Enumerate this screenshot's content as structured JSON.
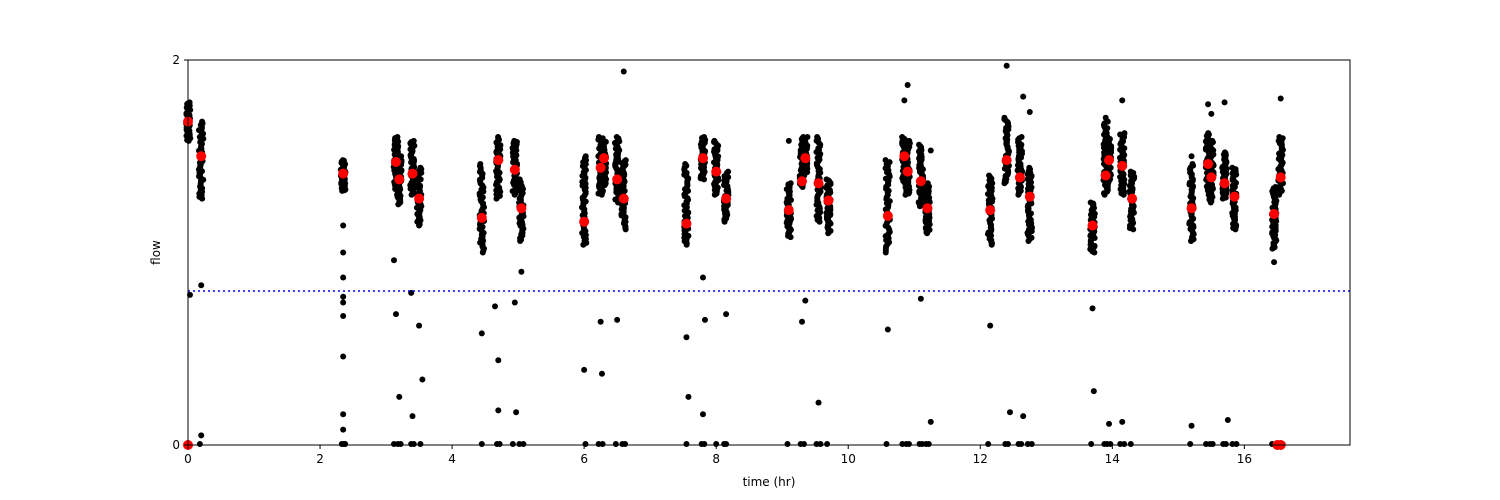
{
  "chart_data": {
    "type": "scatter",
    "title": "",
    "xlabel": "time (hr)",
    "ylabel": "flow",
    "xlim": [
      0,
      17.6
    ],
    "ylim": [
      0,
      2
    ],
    "x_ticks": [
      0,
      2,
      4,
      6,
      8,
      10,
      12,
      14,
      16
    ],
    "y_ticks": [
      0,
      2
    ],
    "grid": false,
    "legend": "none",
    "colors": {
      "raw": "#000000",
      "mean": "#ff0000",
      "threshold": "#0000ff"
    },
    "threshold": {
      "y": 0.8,
      "style": "dotted"
    },
    "clusters": [
      {
        "x": 0.0,
        "ymin": 1.58,
        "ymax": 1.78,
        "mean": 1.68
      },
      {
        "x": 0.2,
        "ymin": 1.28,
        "ymax": 1.68,
        "mean": 1.5
      },
      {
        "x": 2.35,
        "ymin": 1.32,
        "ymax": 1.48,
        "mean": 1.41
      },
      {
        "x": 3.15,
        "ymin": 1.33,
        "ymax": 1.6,
        "mean": 1.47
      },
      {
        "x": 3.2,
        "ymin": 1.25,
        "ymax": 1.5,
        "mean": 1.38
      },
      {
        "x": 3.4,
        "ymin": 1.3,
        "ymax": 1.58,
        "mean": 1.41
      },
      {
        "x": 3.5,
        "ymin": 1.14,
        "ymax": 1.44,
        "mean": 1.28
      },
      {
        "x": 4.45,
        "ymin": 1.0,
        "ymax": 1.46,
        "mean": 1.18
      },
      {
        "x": 4.7,
        "ymin": 1.28,
        "ymax": 1.6,
        "mean": 1.48
      },
      {
        "x": 4.95,
        "ymin": 1.3,
        "ymax": 1.58,
        "mean": 1.43
      },
      {
        "x": 5.05,
        "ymin": 1.06,
        "ymax": 1.38,
        "mean": 1.23
      },
      {
        "x": 6.0,
        "ymin": 1.04,
        "ymax": 1.5,
        "mean": 1.16
      },
      {
        "x": 6.25,
        "ymin": 1.3,
        "ymax": 1.6,
        "mean": 1.44
      },
      {
        "x": 6.3,
        "ymin": 1.35,
        "ymax": 1.58,
        "mean": 1.49
      },
      {
        "x": 6.5,
        "ymin": 1.26,
        "ymax": 1.6,
        "mean": 1.38
      },
      {
        "x": 6.6,
        "ymin": 1.12,
        "ymax": 1.48,
        "mean": 1.28
      },
      {
        "x": 7.55,
        "ymin": 1.04,
        "ymax": 1.46,
        "mean": 1.15
      },
      {
        "x": 7.8,
        "ymin": 1.38,
        "ymax": 1.6,
        "mean": 1.49
      },
      {
        "x": 8.0,
        "ymin": 1.3,
        "ymax": 1.58,
        "mean": 1.42
      },
      {
        "x": 8.15,
        "ymin": 1.16,
        "ymax": 1.42,
        "mean": 1.28
      },
      {
        "x": 9.1,
        "ymin": 1.08,
        "ymax": 1.36,
        "mean": 1.22
      },
      {
        "x": 9.3,
        "ymin": 1.34,
        "ymax": 1.6,
        "mean": 1.37
      },
      {
        "x": 9.35,
        "ymin": 1.4,
        "ymax": 1.6,
        "mean": 1.49
      },
      {
        "x": 9.55,
        "ymin": 1.16,
        "ymax": 1.6,
        "mean": 1.36
      },
      {
        "x": 9.7,
        "ymin": 1.1,
        "ymax": 1.38,
        "mean": 1.27
      },
      {
        "x": 10.6,
        "ymin": 1.0,
        "ymax": 1.48,
        "mean": 1.19
      },
      {
        "x": 10.85,
        "ymin": 1.36,
        "ymax": 1.6,
        "mean": 1.5
      },
      {
        "x": 10.9,
        "ymin": 1.3,
        "ymax": 1.58,
        "mean": 1.42
      },
      {
        "x": 11.1,
        "ymin": 1.24,
        "ymax": 1.56,
        "mean": 1.37
      },
      {
        "x": 11.2,
        "ymin": 1.1,
        "ymax": 1.36,
        "mean": 1.23
      },
      {
        "x": 12.15,
        "ymin": 1.04,
        "ymax": 1.4,
        "mean": 1.22
      },
      {
        "x": 12.4,
        "ymin": 1.36,
        "ymax": 1.7,
        "mean": 1.48
      },
      {
        "x": 12.6,
        "ymin": 1.3,
        "ymax": 1.6,
        "mean": 1.39
      },
      {
        "x": 12.75,
        "ymin": 1.06,
        "ymax": 1.44,
        "mean": 1.29
      },
      {
        "x": 13.7,
        "ymin": 1.0,
        "ymax": 1.26,
        "mean": 1.14
      },
      {
        "x": 13.9,
        "ymin": 1.3,
        "ymax": 1.68,
        "mean": 1.4
      },
      {
        "x": 13.95,
        "ymin": 1.36,
        "ymax": 1.6,
        "mean": 1.48
      },
      {
        "x": 14.15,
        "ymin": 1.3,
        "ymax": 1.62,
        "mean": 1.45
      },
      {
        "x": 14.3,
        "ymin": 1.12,
        "ymax": 1.42,
        "mean": 1.28
      },
      {
        "x": 15.2,
        "ymin": 1.06,
        "ymax": 1.46,
        "mean": 1.23
      },
      {
        "x": 15.45,
        "ymin": 1.3,
        "ymax": 1.62,
        "mean": 1.46
      },
      {
        "x": 15.5,
        "ymin": 1.26,
        "ymax": 1.58,
        "mean": 1.39
      },
      {
        "x": 15.7,
        "ymin": 1.28,
        "ymax": 1.52,
        "mean": 1.36
      },
      {
        "x": 15.85,
        "ymin": 1.12,
        "ymax": 1.44,
        "mean": 1.29
      },
      {
        "x": 16.45,
        "ymin": 1.02,
        "ymax": 1.34,
        "mean": 1.2
      },
      {
        "x": 16.55,
        "ymin": 1.3,
        "ymax": 1.6,
        "mean": 1.39
      }
    ],
    "outliers": [
      {
        "x": 0.03,
        "y": 0.78
      },
      {
        "x": 0.2,
        "y": 0.83
      },
      {
        "x": 0.2,
        "y": 0.05
      },
      {
        "x": 2.35,
        "y": 1.14
      },
      {
        "x": 2.35,
        "y": 1.0
      },
      {
        "x": 2.35,
        "y": 0.87
      },
      {
        "x": 2.35,
        "y": 0.77
      },
      {
        "x": 2.35,
        "y": 0.74
      },
      {
        "x": 2.35,
        "y": 0.67
      },
      {
        "x": 2.35,
        "y": 0.46
      },
      {
        "x": 2.35,
        "y": 0.16
      },
      {
        "x": 2.35,
        "y": 0.08
      },
      {
        "x": 3.12,
        "y": 0.96
      },
      {
        "x": 3.15,
        "y": 0.68
      },
      {
        "x": 3.2,
        "y": 0.25
      },
      {
        "x": 3.38,
        "y": 0.79
      },
      {
        "x": 3.4,
        "y": 0.15
      },
      {
        "x": 3.5,
        "y": 0.62
      },
      {
        "x": 3.55,
        "y": 0.34
      },
      {
        "x": 4.45,
        "y": 0.58
      },
      {
        "x": 4.65,
        "y": 0.72
      },
      {
        "x": 4.7,
        "y": 0.44
      },
      {
        "x": 4.7,
        "y": 0.18
      },
      {
        "x": 4.95,
        "y": 0.74
      },
      {
        "x": 4.97,
        "y": 0.17
      },
      {
        "x": 5.05,
        "y": 0.9
      },
      {
        "x": 6.0,
        "y": 0.39
      },
      {
        "x": 6.25,
        "y": 0.64
      },
      {
        "x": 6.27,
        "y": 0.37
      },
      {
        "x": 6.5,
        "y": 0.65
      },
      {
        "x": 6.6,
        "y": 1.94
      },
      {
        "x": 7.55,
        "y": 0.56
      },
      {
        "x": 7.58,
        "y": 0.25
      },
      {
        "x": 7.8,
        "y": 0.87
      },
      {
        "x": 7.83,
        "y": 0.65
      },
      {
        "x": 7.8,
        "y": 0.16
      },
      {
        "x": 8.15,
        "y": 0.68
      },
      {
        "x": 9.1,
        "y": 1.58
      },
      {
        "x": 9.3,
        "y": 0.64
      },
      {
        "x": 9.35,
        "y": 0.75
      },
      {
        "x": 9.55,
        "y": 0.22
      },
      {
        "x": 10.6,
        "y": 0.6
      },
      {
        "x": 10.85,
        "y": 1.79
      },
      {
        "x": 10.9,
        "y": 1.87
      },
      {
        "x": 11.1,
        "y": 0.76
      },
      {
        "x": 11.25,
        "y": 1.53
      },
      {
        "x": 11.25,
        "y": 0.12
      },
      {
        "x": 12.15,
        "y": 0.62
      },
      {
        "x": 12.4,
        "y": 1.97
      },
      {
        "x": 12.45,
        "y": 0.17
      },
      {
        "x": 12.65,
        "y": 1.81
      },
      {
        "x": 12.75,
        "y": 1.73
      },
      {
        "x": 12.65,
        "y": 0.15
      },
      {
        "x": 13.7,
        "y": 0.71
      },
      {
        "x": 13.72,
        "y": 0.28
      },
      {
        "x": 13.9,
        "y": 1.7
      },
      {
        "x": 13.95,
        "y": 0.11
      },
      {
        "x": 14.15,
        "y": 1.79
      },
      {
        "x": 14.15,
        "y": 0.12
      },
      {
        "x": 15.2,
        "y": 1.5
      },
      {
        "x": 15.2,
        "y": 0.1
      },
      {
        "x": 15.45,
        "y": 1.77
      },
      {
        "x": 15.5,
        "y": 1.72
      },
      {
        "x": 15.7,
        "y": 1.78
      },
      {
        "x": 15.75,
        "y": 0.13
      },
      {
        "x": 16.45,
        "y": 0.95
      },
      {
        "x": 16.55,
        "y": 1.8
      }
    ],
    "zero_points": [
      0.0,
      0.18,
      2.33,
      2.36,
      2.38,
      3.12,
      3.18,
      3.22,
      3.38,
      3.42,
      3.52,
      4.45,
      4.68,
      4.72,
      4.92,
      5.02,
      5.08,
      6.02,
      6.22,
      6.28,
      6.48,
      6.58,
      6.62,
      7.55,
      7.78,
      7.82,
      8.0,
      8.12,
      8.15,
      9.08,
      9.28,
      9.33,
      9.52,
      9.58,
      9.68,
      10.58,
      10.82,
      10.88,
      10.92,
      11.08,
      11.12,
      11.18,
      11.22,
      12.12,
      12.38,
      12.42,
      12.58,
      12.62,
      12.72,
      12.78,
      13.68,
      13.88,
      13.92,
      13.97,
      14.12,
      14.18,
      14.28,
      15.18,
      15.42,
      15.48,
      15.52,
      15.68,
      15.72,
      15.82,
      15.88,
      16.42,
      16.48,
      16.52,
      16.58
    ],
    "zero_means": [
      0.0,
      16.5,
      16.55
    ]
  }
}
